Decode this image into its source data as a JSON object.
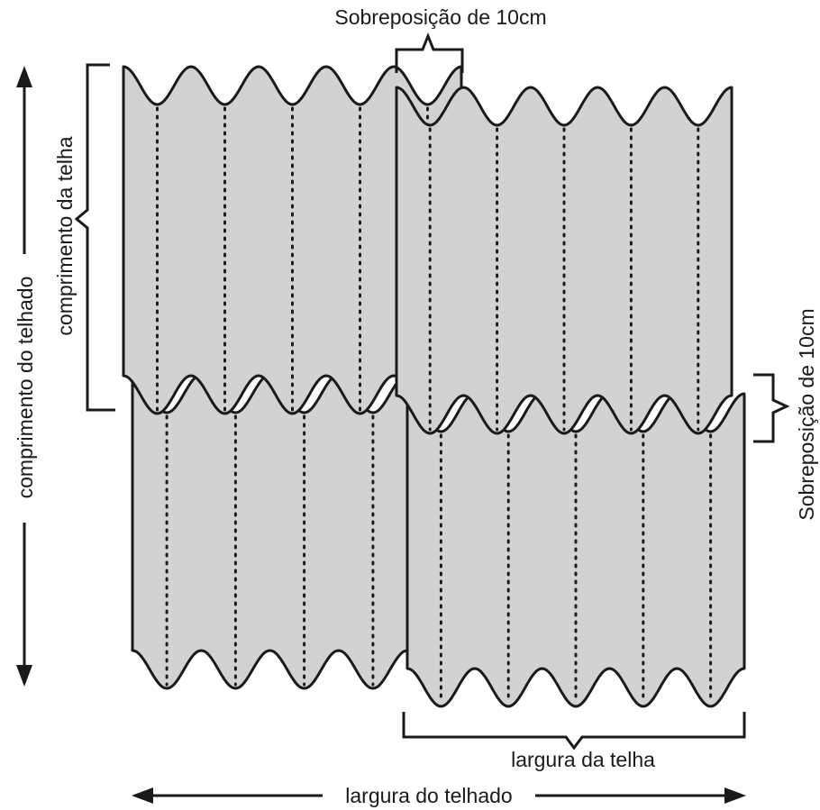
{
  "labels": {
    "top_overlap": "Sobreposição de 10cm",
    "side_overlap": "Sobreposição de 10cm",
    "tile_length": "comprimento da telha",
    "roof_length": "comprimento do telhado",
    "tile_width": "largura da telha",
    "roof_width": "largura do telhado"
  },
  "sheets": [
    {
      "name": "sheet-bottom-left",
      "waves": 4
    },
    {
      "name": "sheet-bottom-right",
      "waves": 5
    },
    {
      "name": "sheet-top-left",
      "waves": 5
    },
    {
      "name": "sheet-top-right",
      "waves": 5
    }
  ],
  "colors": {
    "sheet_fill": "#d1d2d4",
    "line": "#1a1a1a",
    "background": "#ffffff"
  }
}
